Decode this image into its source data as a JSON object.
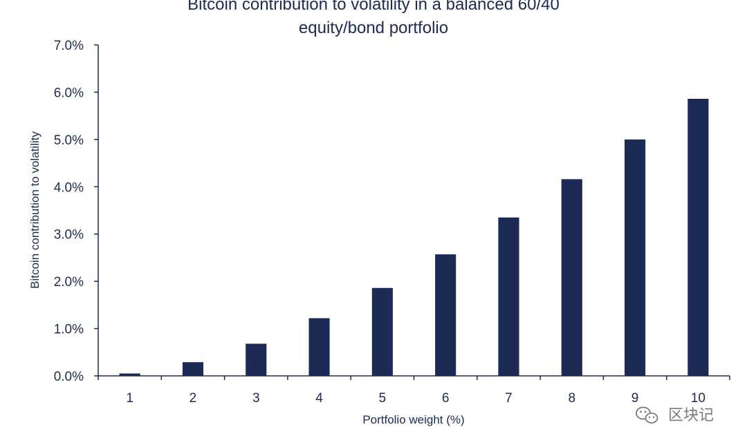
{
  "chart_data": {
    "type": "bar",
    "title_lines": [
      "Bitcoin contribution to volatility in a balanced 60/40",
      "equity/bond portfolio"
    ],
    "xlabel": "Portfolio weight (%)",
    "ylabel": "Bitcoin contribution to volatility",
    "categories": [
      "1",
      "2",
      "3",
      "4",
      "5",
      "6",
      "7",
      "8",
      "9",
      "10"
    ],
    "values": [
      0.05,
      0.29,
      0.68,
      1.22,
      1.86,
      2.57,
      3.35,
      4.16,
      5.0,
      5.86
    ],
    "ylim": [
      0,
      7
    ],
    "yticks": [
      0,
      1,
      2,
      3,
      4,
      5,
      6,
      7
    ],
    "ytick_labels": [
      "0.0%",
      "1.0%",
      "2.0%",
      "3.0%",
      "4.0%",
      "5.0%",
      "6.0%",
      "7.0%"
    ],
    "grid": false,
    "bar_color": "#1c2a55"
  },
  "watermark": {
    "text": "区块记",
    "icon": "wechat-icon"
  }
}
